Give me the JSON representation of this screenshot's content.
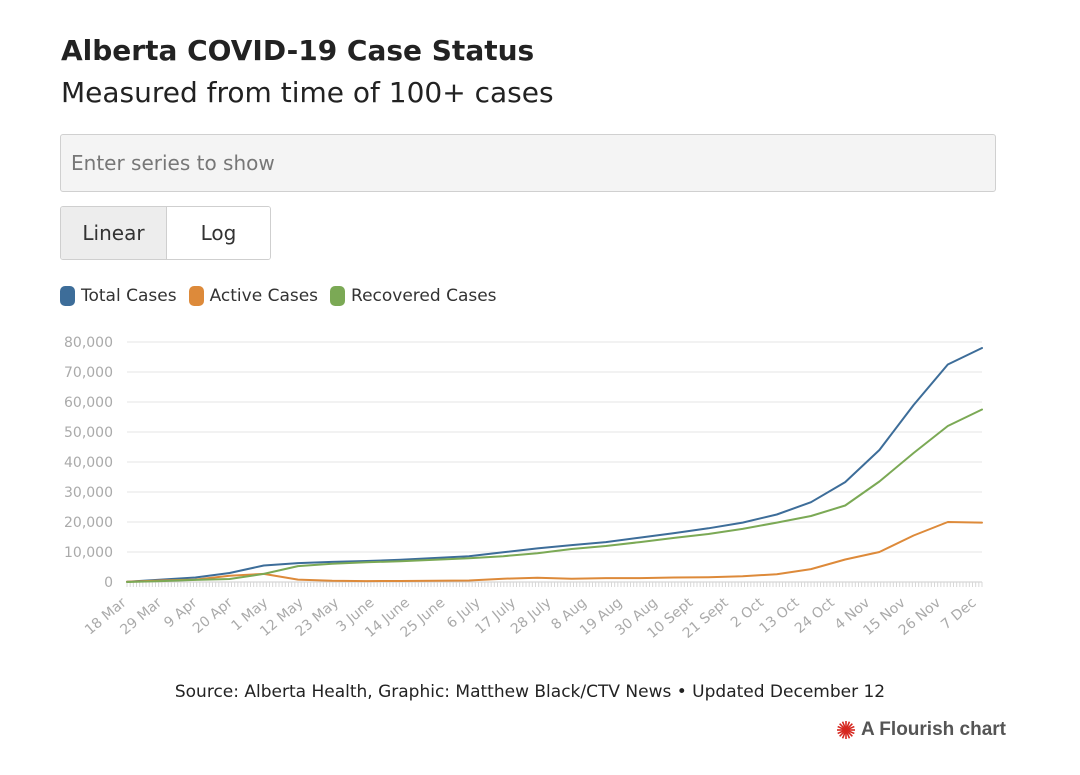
{
  "header": {
    "title": "Alberta COVID-19 Case Status",
    "subtitle": "Measured from time of 100+ cases"
  },
  "controls": {
    "search_placeholder": "Enter series to show",
    "scale_linear": "Linear",
    "scale_log": "Log",
    "active_scale": "Linear"
  },
  "footer": {
    "source": "Source: Alberta Health, Graphic: Matthew Black/CTV News • Updated December 12",
    "brand": "A Flourish chart",
    "brand_icon": "flourish-burst-icon",
    "brand_color": "#d6271f"
  },
  "chart_data": {
    "type": "line",
    "grid": true,
    "legend_position": "top-left",
    "ylim": [
      0,
      80000
    ],
    "y_ticks": [
      0,
      10000,
      20000,
      30000,
      40000,
      50000,
      60000,
      70000,
      80000
    ],
    "y_tick_labels": [
      "0",
      "10,000",
      "20,000",
      "30,000",
      "40,000",
      "50,000",
      "60,000",
      "70,000",
      "80,000"
    ],
    "x_labels": [
      "18 Mar",
      "29 Mar",
      "9 Apr",
      "20 Apr",
      "1 May",
      "12 May",
      "23 May",
      "3 June",
      "14 June",
      "25 June",
      "6 July",
      "17 July",
      "28 July",
      "8 Aug",
      "19 Aug",
      "30 Aug",
      "10 Sept",
      "21 Sept",
      "2 Oct",
      "13 Oct",
      "24 Oct",
      "4 Nov",
      "15 Nov",
      "26 Nov",
      "7 Dec"
    ],
    "x": [
      "18 Mar",
      "29 Mar",
      "9 Apr",
      "20 Apr",
      "1 May",
      "12 May",
      "23 May",
      "3 June",
      "14 June",
      "25 June",
      "6 July",
      "17 July",
      "28 July",
      "8 Aug",
      "19 Aug",
      "30 Aug",
      "10 Sept",
      "21 Sept",
      "2 Oct",
      "13 Oct",
      "24 Oct",
      "4 Nov",
      "15 Nov",
      "26 Nov",
      "7 Dec",
      "12 Dec"
    ],
    "series": [
      {
        "name": "Total Cases",
        "color": "#3d6d99",
        "values": [
          100,
          800,
          1500,
          3000,
          5500,
          6300,
          6700,
          7000,
          7400,
          8000,
          8600,
          9900,
          11200,
          12300,
          13300,
          14800,
          16300,
          17900,
          19800,
          22500,
          26600,
          33300,
          44000,
          59000,
          72500,
          78000
        ]
      },
      {
        "name": "Active Cases",
        "color": "#dd8a3a",
        "values": [
          100,
          500,
          800,
          2100,
          2700,
          800,
          400,
          300,
          350,
          400,
          500,
          1100,
          1400,
          1100,
          1300,
          1300,
          1500,
          1600,
          1900,
          2600,
          4300,
          7500,
          10000,
          15500,
          20000,
          19800
        ]
      },
      {
        "name": "Recovered Cases",
        "color": "#7ba955",
        "values": [
          0,
          300,
          700,
          1000,
          2700,
          5300,
          6100,
          6600,
          6900,
          7400,
          7900,
          8600,
          9600,
          11000,
          12000,
          13300,
          14700,
          16000,
          17700,
          19800,
          22000,
          25500,
          33500,
          43000,
          52000,
          57500
        ]
      }
    ]
  }
}
